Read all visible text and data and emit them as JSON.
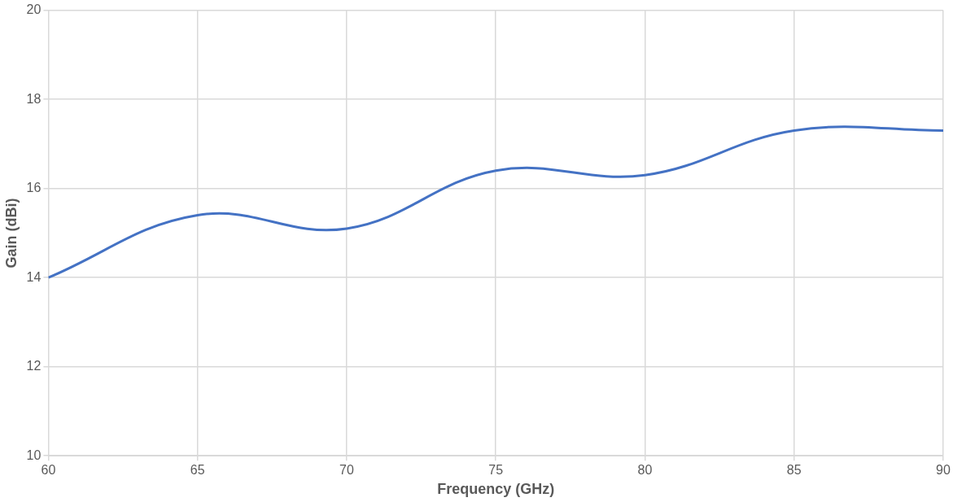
{
  "chart_data": {
    "type": "line",
    "xlabel": "Frequency (GHz)",
    "ylabel": "Gain (dBi)",
    "x": [
      60,
      65,
      70,
      75,
      80,
      85,
      90
    ],
    "series": [
      {
        "color": "#4472c4",
        "values": [
          14.0,
          15.4,
          15.1,
          16.4,
          16.3,
          17.3,
          17.3
        ]
      }
    ],
    "xlim": [
      60,
      90
    ],
    "xticks": [
      60,
      65,
      70,
      75,
      80,
      85,
      90
    ],
    "ylim": [
      10,
      20
    ],
    "yticks": [
      10,
      12,
      14,
      16,
      18,
      20
    ],
    "grid": true,
    "legend": false,
    "marker": "none",
    "line_style": "solid"
  }
}
